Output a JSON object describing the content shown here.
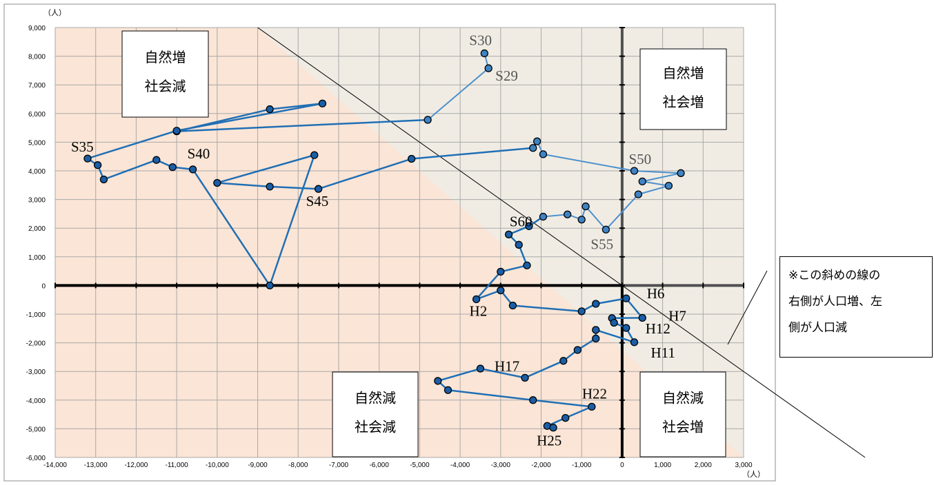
{
  "chart_data": {
    "type": "scatter",
    "connected": true,
    "x_unit": "（人）",
    "y_unit": "（人）",
    "xlim": [
      -14000,
      3000
    ],
    "ylim": [
      -6000,
      9000
    ],
    "x_ticks": [
      "-14,000",
      "-13,000",
      "-12,000",
      "-11,000",
      "-10,000",
      "-9,000",
      "-8,000",
      "-7,000",
      "-6,000",
      "-5,000",
      "-4,000",
      "-3,000",
      "-2,000",
      "-1,000",
      "0",
      "1,000",
      "2,000",
      "3,000"
    ],
    "y_ticks": [
      "9,000",
      "8,000",
      "7,000",
      "6,000",
      "5,000",
      "4,000",
      "3,000",
      "2,000",
      "1,000",
      "0",
      "-1,000",
      "-2,000",
      "-3,000",
      "-4,000",
      "-5,000",
      "-6,000"
    ],
    "grid": true,
    "colors": {
      "line_dark": "#1f6fb5",
      "line_light": "#4e90cc",
      "marker_dark": "#1a5ea6",
      "marker_light": "#3f83c4",
      "bg_decrease": "#fbe5d6",
      "bg_increase": "#f0ece4",
      "grid": "#a9a9a9",
      "axis": "#000000"
    },
    "series": [
      {
        "points": [
          [
            -3400,
            8100
          ],
          [
            -3300,
            7580
          ],
          [
            -4800,
            5780
          ],
          [
            -11000,
            5380
          ],
          [
            -8700,
            6150
          ],
          [
            -7400,
            6350
          ],
          [
            -11000,
            5400
          ],
          [
            -13200,
            4430
          ],
          [
            -12950,
            4200
          ],
          [
            -12800,
            3700
          ],
          [
            -11500,
            4380
          ],
          [
            -11100,
            4130
          ],
          [
            -10600,
            4050
          ],
          [
            -8700,
            0
          ],
          [
            -7600,
            4550
          ],
          [
            -10000,
            3580
          ],
          [
            -8700,
            3450
          ],
          [
            -7500,
            3370
          ],
          [
            -5200,
            4420
          ],
          [
            -2200,
            4800
          ],
          [
            -2100,
            5030
          ],
          [
            -1950,
            4580
          ],
          [
            300,
            4000
          ],
          [
            1450,
            3920
          ],
          [
            500,
            3630
          ],
          [
            1150,
            3480
          ],
          [
            400,
            3180
          ],
          [
            -400,
            1950
          ],
          [
            -900,
            2760
          ],
          [
            -1000,
            2300
          ],
          [
            -1350,
            2480
          ],
          [
            -1950,
            2400
          ],
          [
            -2300,
            2070
          ],
          [
            -2800,
            1780
          ],
          [
            -2550,
            1420
          ],
          [
            -2350,
            700
          ],
          [
            -3000,
            480
          ],
          [
            -3600,
            -480
          ],
          [
            -3000,
            -170
          ],
          [
            -2700,
            -700
          ],
          [
            -1000,
            -900
          ],
          [
            -650,
            -640
          ],
          [
            100,
            -450
          ],
          [
            500,
            -1130
          ],
          [
            -250,
            -1140
          ],
          [
            -200,
            -1300
          ],
          [
            100,
            -1480
          ],
          [
            300,
            -1980
          ],
          [
            -650,
            -1550
          ],
          [
            -650,
            -1850
          ],
          [
            -1100,
            -2250
          ],
          [
            -1450,
            -2630
          ],
          [
            -2400,
            -3220
          ],
          [
            -3500,
            -2900
          ],
          [
            -4550,
            -3330
          ],
          [
            -4300,
            -3650
          ],
          [
            -2200,
            -4000
          ],
          [
            -750,
            -4230
          ],
          [
            -1400,
            -4620
          ],
          [
            -1850,
            -4900
          ],
          [
            -1700,
            -4960
          ]
        ]
      }
    ],
    "point_labels": [
      {
        "text": "S30",
        "x": -3400,
        "y": 8100
      },
      {
        "text": "S29",
        "x": -3300,
        "y": 7580
      },
      {
        "text": "S35",
        "x": -13200,
        "y": 4430
      },
      {
        "text": "S40",
        "x": -10600,
        "y": 4050
      },
      {
        "text": "S45",
        "x": -7500,
        "y": 3370
      },
      {
        "text": "S50",
        "x": 300,
        "y": 4000
      },
      {
        "text": "S55",
        "x": -400,
        "y": 1950
      },
      {
        "text": "S60",
        "x": -2300,
        "y": 2070
      },
      {
        "text": "H2",
        "x": -3600,
        "y": -480
      },
      {
        "text": "H6",
        "x": 100,
        "y": -450
      },
      {
        "text": "H7",
        "x": 500,
        "y": -1130
      },
      {
        "text": "H12",
        "x": 100,
        "y": -1480
      },
      {
        "text": "H11",
        "x": 300,
        "y": -1980
      },
      {
        "text": "H17",
        "x": -2400,
        "y": -3220
      },
      {
        "text": "H22",
        "x": -750,
        "y": -4230
      },
      {
        "text": "H25",
        "x": -1700,
        "y": -4960
      }
    ],
    "quadrant_labels": [
      {
        "line1": "自然増",
        "line2": "社会減"
      },
      {
        "line1": "自然増",
        "line2": "社会増"
      },
      {
        "line1": "自然減",
        "line2": "社会減"
      },
      {
        "line1": "自然減",
        "line2": "社会増"
      }
    ]
  },
  "note": {
    "lines": [
      "※この斜めの線の",
      "右側が人口増、左",
      "側が人口減"
    ]
  }
}
